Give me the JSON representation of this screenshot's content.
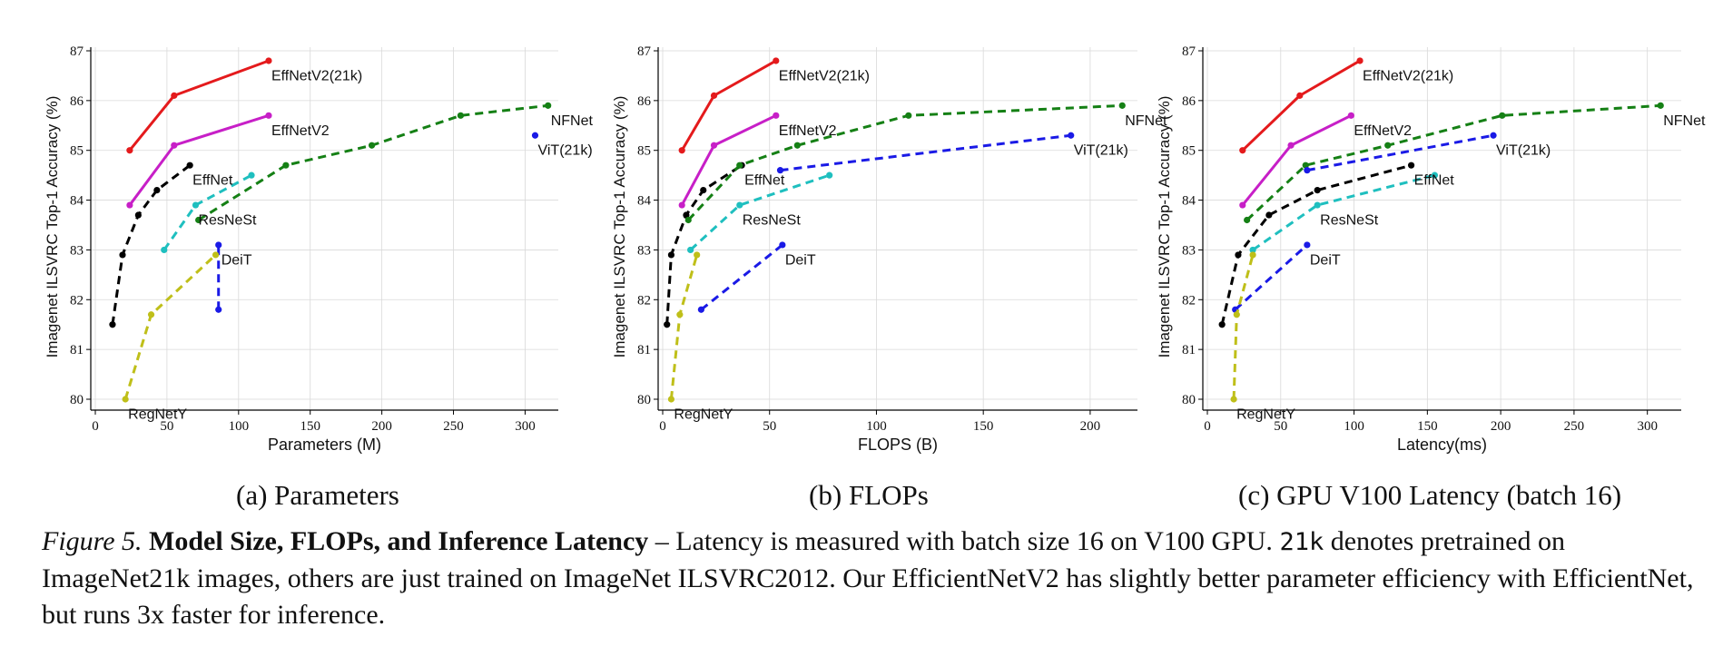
{
  "chart_data": [
    {
      "type": "line",
      "subcaption": "(a) Parameters",
      "xlabel": "Parameters (M)",
      "ylabel": "Imagenet ILSVRC Top-1 Accuracy (%)",
      "xlim": [
        0,
        320
      ],
      "ylim": [
        80,
        87
      ],
      "xticks": [
        0,
        50,
        100,
        150,
        200,
        250,
        300
      ],
      "yticks": [
        80,
        81,
        82,
        83,
        84,
        85,
        86,
        87
      ],
      "grid": true,
      "series": [
        {
          "name": "EffNetV2(21k)",
          "color": "#e41a1c",
          "dash": false,
          "x": [
            24,
            55,
            121
          ],
          "y": [
            85.0,
            86.1,
            86.8
          ]
        },
        {
          "name": "EffNetV2",
          "color": "#c71fc7",
          "dash": false,
          "x": [
            24,
            55,
            121
          ],
          "y": [
            83.9,
            85.1,
            85.7
          ]
        },
        {
          "name": "EffNet",
          "color": "#000000",
          "dash": true,
          "x": [
            12,
            19,
            30,
            43,
            66
          ],
          "y": [
            81.5,
            82.9,
            83.7,
            84.2,
            84.7
          ]
        },
        {
          "name": "ResNeSt",
          "color": "#1fbfbf",
          "dash": true,
          "x": [
            48,
            70,
            109
          ],
          "y": [
            83.0,
            83.9,
            84.5
          ]
        },
        {
          "name": "DeiT",
          "color": "#1a1ae6",
          "dash": true,
          "x": [
            86,
            86
          ],
          "y": [
            81.8,
            83.1
          ]
        },
        {
          "name": "RegNetY",
          "color": "#bfbf19",
          "dash": true,
          "x": [
            21,
            39,
            84
          ],
          "y": [
            80.0,
            81.7,
            82.9
          ]
        },
        {
          "name": "NFNet",
          "color": "#158015",
          "dash": true,
          "x": [
            72,
            133,
            193,
            255,
            316
          ],
          "y": [
            83.6,
            84.7,
            85.1,
            85.7,
            85.9
          ]
        },
        {
          "name": "ViT(21k)",
          "color": "#1a1ae6",
          "dash": true,
          "x": [
            307
          ],
          "y": [
            85.3
          ]
        }
      ],
      "labels": [
        {
          "text": "EffNetV2(21k)",
          "x": 121,
          "y": 86.7
        },
        {
          "text": "EffNetV2",
          "x": 121,
          "y": 85.6
        },
        {
          "text": "EffNet",
          "x": 66,
          "y": 84.6
        },
        {
          "text": "ResNeSt",
          "x": 70,
          "y": 83.8
        },
        {
          "text": "DeiT",
          "x": 86,
          "y": 83.0
        },
        {
          "text": "RegNetY",
          "x": 21,
          "y": 79.9
        },
        {
          "text": "NFNet",
          "x": 316,
          "y": 85.8
        },
        {
          "text": "ViT(21k)",
          "x": 307,
          "y": 85.2
        }
      ]
    },
    {
      "type": "line",
      "subcaption": "(b) FLOPs",
      "xlabel": "FLOPS (B)",
      "ylabel": "Imagenet ILSVRC Top-1 Accuracy (%)",
      "xlim": [
        0,
        220
      ],
      "ylim": [
        80,
        87
      ],
      "xticks": [
        0,
        50,
        100,
        150,
        200
      ],
      "yticks": [
        80,
        81,
        82,
        83,
        84,
        85,
        86,
        87
      ],
      "grid": true,
      "series": [
        {
          "name": "EffNetV2(21k)",
          "color": "#e41a1c",
          "dash": false,
          "x": [
            9,
            24,
            53
          ],
          "y": [
            85.0,
            86.1,
            86.8
          ]
        },
        {
          "name": "EffNetV2",
          "color": "#c71fc7",
          "dash": false,
          "x": [
            9,
            24,
            53
          ],
          "y": [
            83.9,
            85.1,
            85.7
          ]
        },
        {
          "name": "EffNet",
          "color": "#000000",
          "dash": true,
          "x": [
            2,
            4,
            11,
            19,
            37
          ],
          "y": [
            81.5,
            82.9,
            83.7,
            84.2,
            84.7
          ]
        },
        {
          "name": "ResNeSt",
          "color": "#1fbfbf",
          "dash": true,
          "x": [
            13,
            36,
            78
          ],
          "y": [
            83.0,
            83.9,
            84.5
          ]
        },
        {
          "name": "DeiT",
          "color": "#1a1ae6",
          "dash": true,
          "x": [
            18,
            56
          ],
          "y": [
            81.8,
            83.1
          ]
        },
        {
          "name": "RegNetY",
          "color": "#bfbf19",
          "dash": true,
          "x": [
            4,
            8,
            16
          ],
          "y": [
            80.0,
            81.7,
            82.9
          ]
        },
        {
          "name": "NFNet",
          "color": "#158015",
          "dash": true,
          "x": [
            12,
            36,
            63,
            115,
            215
          ],
          "y": [
            83.6,
            84.7,
            85.1,
            85.7,
            85.9
          ]
        },
        {
          "name": "ViT(21k)",
          "color": "#1a1ae6",
          "dash": true,
          "x": [
            55,
            191
          ],
          "y": [
            84.6,
            85.3
          ]
        }
      ],
      "labels": [
        {
          "text": "EffNetV2(21k)",
          "x": 53,
          "y": 86.7
        },
        {
          "text": "EffNetV2",
          "x": 53,
          "y": 85.6
        },
        {
          "text": "EffNet",
          "x": 37,
          "y": 84.6
        },
        {
          "text": "ResNeSt",
          "x": 36,
          "y": 83.8
        },
        {
          "text": "DeiT",
          "x": 56,
          "y": 83.0
        },
        {
          "text": "RegNetY",
          "x": 4,
          "y": 79.9
        },
        {
          "text": "NFNet",
          "x": 215,
          "y": 85.8
        },
        {
          "text": "ViT(21k)",
          "x": 191,
          "y": 85.2
        }
      ]
    },
    {
      "type": "line",
      "subcaption": "(c) GPU V100 Latency (batch 16)",
      "xlabel": "Latency(ms)",
      "ylabel": "Imagenet ILSVRC Top-1 Accuracy (%)",
      "xlim": [
        0,
        320
      ],
      "ylim": [
        80,
        87
      ],
      "xticks": [
        0,
        50,
        100,
        150,
        200,
        250,
        300
      ],
      "yticks": [
        80,
        81,
        82,
        83,
        84,
        85,
        86,
        87
      ],
      "grid": true,
      "series": [
        {
          "name": "EffNetV2(21k)",
          "color": "#e41a1c",
          "dash": false,
          "x": [
            24,
            63,
            104
          ],
          "y": [
            85.0,
            86.1,
            86.8
          ]
        },
        {
          "name": "EffNetV2",
          "color": "#c71fc7",
          "dash": false,
          "x": [
            24,
            57,
            98
          ],
          "y": [
            83.9,
            85.1,
            85.7
          ]
        },
        {
          "name": "EffNet",
          "color": "#000000",
          "dash": true,
          "x": [
            10,
            21,
            42,
            75,
            139
          ],
          "y": [
            81.5,
            82.9,
            83.7,
            84.2,
            84.7
          ]
        },
        {
          "name": "ResNeSt",
          "color": "#1fbfbf",
          "dash": true,
          "x": [
            31,
            75,
            155
          ],
          "y": [
            83.0,
            83.9,
            84.5
          ]
        },
        {
          "name": "DeiT",
          "color": "#1a1ae6",
          "dash": true,
          "x": [
            19,
            68
          ],
          "y": [
            81.8,
            83.1
          ]
        },
        {
          "name": "RegNetY",
          "color": "#bfbf19",
          "dash": true,
          "x": [
            18,
            20,
            31
          ],
          "y": [
            80.0,
            81.7,
            82.9
          ]
        },
        {
          "name": "NFNet",
          "color": "#158015",
          "dash": true,
          "x": [
            27,
            67,
            123,
            201,
            309
          ],
          "y": [
            83.6,
            84.7,
            85.1,
            85.7,
            85.9
          ]
        },
        {
          "name": "ViT(21k)",
          "color": "#1a1ae6",
          "dash": true,
          "x": [
            68,
            195
          ],
          "y": [
            84.6,
            85.3
          ]
        }
      ],
      "labels": [
        {
          "text": "EffNetV2(21k)",
          "x": 104,
          "y": 86.7
        },
        {
          "text": "EffNetV2",
          "x": 98,
          "y": 85.6
        },
        {
          "text": "EffNet",
          "x": 139,
          "y": 84.6
        },
        {
          "text": "ResNeSt",
          "x": 75,
          "y": 83.8
        },
        {
          "text": "DeiT",
          "x": 68,
          "y": 83.0
        },
        {
          "text": "RegNetY",
          "x": 18,
          "y": 79.9
        },
        {
          "text": "NFNet",
          "x": 309,
          "y": 85.8
        },
        {
          "text": "ViT(21k)",
          "x": 195,
          "y": 85.2
        }
      ]
    }
  ],
  "caption": {
    "figure_label": "Figure 5.",
    "bold_title": "Model Size, FLOPs, and Inference Latency",
    "text_1": " – Latency is measured with batch size 16 on V100 GPU. ",
    "code": "21k",
    "text_2": " denotes pretrained on ImageNet21k images, others are just trained on ImageNet ILSVRC2012. Our EfficientNetV2 has slightly better parameter efficiency with EfficientNet, but runs 3x faster for inference."
  }
}
